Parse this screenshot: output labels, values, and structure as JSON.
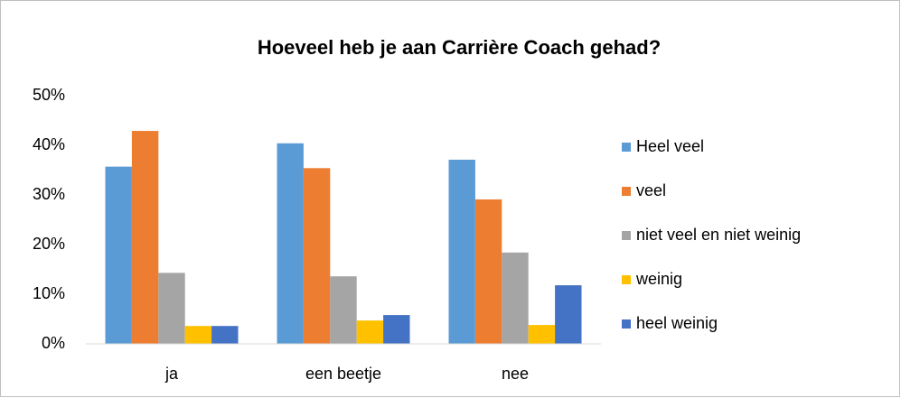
{
  "chart_data": {
    "type": "bar",
    "title": "Hoeveel heb je aan Carrière Coach gehad?",
    "categories": [
      "ja",
      "een beetje",
      "nee"
    ],
    "series": [
      {
        "name": "Heel veel",
        "color": "#5b9bd5",
        "values": [
          35.7,
          40.4,
          37.1
        ]
      },
      {
        "name": "veel",
        "color": "#ed7d31",
        "values": [
          42.9,
          35.4,
          29.1
        ]
      },
      {
        "name": "niet veel en niet weinig",
        "color": "#a5a5a5",
        "values": [
          14.3,
          13.6,
          18.4
        ]
      },
      {
        "name": "weinig",
        "color": "#ffc000",
        "values": [
          3.6,
          4.7,
          3.8
        ]
      },
      {
        "name": "heel weinig",
        "color": "#4472c4",
        "values": [
          3.6,
          5.8,
          11.8
        ]
      }
    ],
    "ylim": [
      0,
      50
    ],
    "yticks": [
      {
        "value": 0,
        "label": "0%"
      },
      {
        "value": 10,
        "label": "10%"
      },
      {
        "value": 20,
        "label": "20%"
      },
      {
        "value": 30,
        "label": "30%"
      },
      {
        "value": 40,
        "label": "40%"
      },
      {
        "value": 50,
        "label": "50%"
      }
    ],
    "grid": false,
    "legend": "right"
  }
}
